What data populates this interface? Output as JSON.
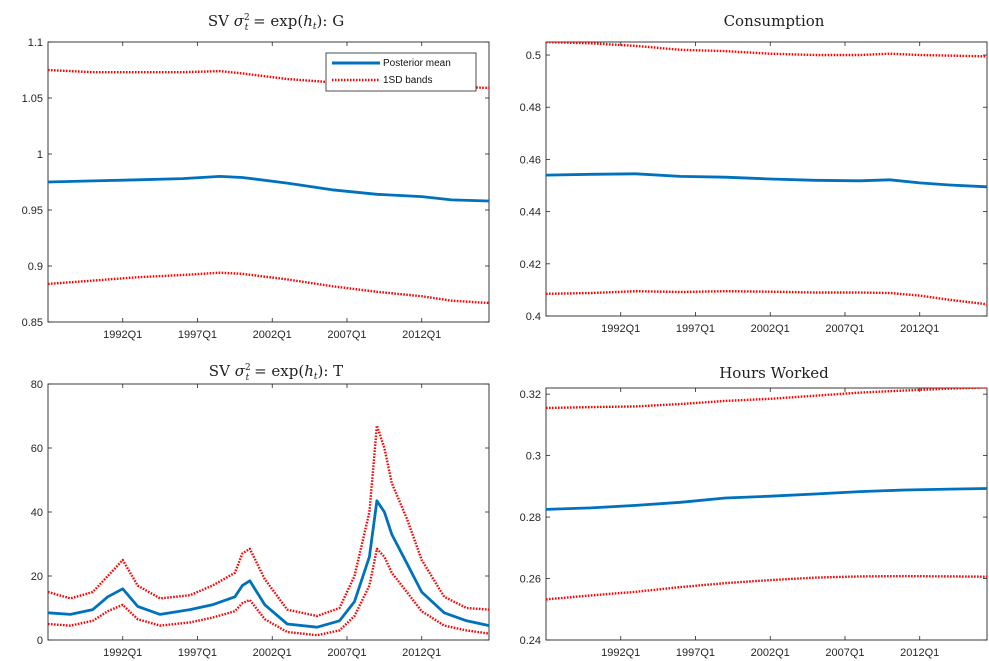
{
  "chart_data": [
    {
      "type": "line",
      "title": "SV σ²_t = exp(h_t): G",
      "xlabel": "",
      "ylabel": "",
      "xlim": [
        1987.0,
        2016.5
      ],
      "ylim": [
        0.85,
        1.1
      ],
      "yticks": [
        "0.85",
        "0.9",
        "0.95",
        "1",
        "1.05",
        "1.1"
      ],
      "xticks": [
        "1992Q1",
        "1997Q1",
        "2002Q1",
        "2007Q1",
        "2012Q1"
      ],
      "legend": {
        "placement": "top-right",
        "entries": [
          "Posterior mean",
          "1SD bands"
        ]
      },
      "x": [
        1987.0,
        1990.0,
        1993.0,
        1996.0,
        1998.5,
        2000.0,
        2003.0,
        2006.0,
        2009.0,
        2012.0,
        2014.0,
        2016.5
      ],
      "series": [
        {
          "name": "Posterior mean",
          "style": "solid",
          "color": "#0072BD",
          "values": [
            0.975,
            0.976,
            0.977,
            0.978,
            0.98,
            0.979,
            0.974,
            0.968,
            0.964,
            0.962,
            0.959,
            0.958
          ]
        },
        {
          "name": "1SD bands",
          "style": "dotted",
          "color": "#FF0000",
          "values": [
            1.075,
            1.073,
            1.073,
            1.073,
            1.074,
            1.072,
            1.067,
            1.064,
            1.063,
            1.062,
            1.06,
            1.059
          ]
        },
        {
          "name": "1SD bands",
          "style": "dotted",
          "color": "#FF0000",
          "values": [
            0.884,
            0.887,
            0.89,
            0.892,
            0.894,
            0.893,
            0.888,
            0.882,
            0.877,
            0.873,
            0.869,
            0.867
          ]
        }
      ]
    },
    {
      "type": "line",
      "title": "Consumption",
      "xlabel": "",
      "ylabel": "",
      "xlim": [
        1987.0,
        2016.5
      ],
      "ylim": [
        0.4,
        0.505
      ],
      "yticks": [
        "0.4",
        "0.42",
        "0.44",
        "0.46",
        "0.48",
        "0.5"
      ],
      "xticks": [
        "1992Q1",
        "1997Q1",
        "2002Q1",
        "2007Q1",
        "2012Q1"
      ],
      "x": [
        1987.0,
        1990.0,
        1993.0,
        1996.0,
        1999.0,
        2002.0,
        2005.0,
        2008.0,
        2010.0,
        2012.0,
        2014.0,
        2016.5
      ],
      "series": [
        {
          "name": "Posterior mean",
          "style": "solid",
          "color": "#0072BD",
          "values": [
            0.454,
            0.4543,
            0.4545,
            0.4535,
            0.4532,
            0.4525,
            0.452,
            0.4518,
            0.4522,
            0.451,
            0.4502,
            0.4495
          ]
        },
        {
          "name": "1SD bands",
          "style": "dotted",
          "color": "#FF0000",
          "values": [
            0.505,
            0.5045,
            0.5035,
            0.502,
            0.5015,
            0.5005,
            0.5,
            0.5,
            0.5005,
            0.5,
            0.4998,
            0.4995
          ]
        },
        {
          "name": "1SD bands",
          "style": "dotted",
          "color": "#FF0000",
          "values": [
            0.4085,
            0.4088,
            0.4095,
            0.4092,
            0.4095,
            0.4093,
            0.409,
            0.409,
            0.4088,
            0.4078,
            0.4062,
            0.4045
          ]
        }
      ]
    },
    {
      "type": "line",
      "title": "SV σ²_t = exp(h_t): T",
      "xlabel": "",
      "ylabel": "",
      "xlim": [
        1987.0,
        2016.5
      ],
      "ylim": [
        0,
        80
      ],
      "yticks": [
        "0",
        "20",
        "40",
        "60",
        "80"
      ],
      "xticks": [
        "1992Q1",
        "1997Q1",
        "2002Q1",
        "2007Q1",
        "2012Q1"
      ],
      "x": [
        1987.0,
        1988.5,
        1990.0,
        1991.0,
        1992.0,
        1993.0,
        1994.5,
        1996.5,
        1998.0,
        1999.5,
        2000.0,
        2000.5,
        2001.5,
        2003.0,
        2005.0,
        2006.5,
        2007.5,
        2008.5,
        2009.0,
        2009.5,
        2010.0,
        2011.0,
        2012.0,
        2013.5,
        2015.0,
        2016.5
      ],
      "series": [
        {
          "name": "Posterior mean",
          "style": "solid",
          "color": "#0072BD",
          "values": [
            8.5,
            8,
            9.5,
            13.5,
            16,
            10.5,
            8,
            9.5,
            11,
            13.5,
            17,
            18.5,
            11,
            5,
            4,
            6,
            12,
            26,
            43.5,
            40,
            33,
            24,
            15,
            8.5,
            6,
            4.5
          ]
        },
        {
          "name": "1SD bands",
          "style": "dotted",
          "color": "#FF0000",
          "values": [
            15,
            13,
            15,
            20,
            25,
            17,
            13,
            14,
            17,
            21,
            27,
            28.5,
            19,
            9.5,
            7.5,
            10,
            20,
            40,
            67,
            60,
            49,
            38,
            25,
            13.5,
            10,
            9.5
          ]
        },
        {
          "name": "1SD bands",
          "style": "dotted",
          "color": "#FF0000",
          "values": [
            5,
            4.5,
            6,
            9,
            11,
            6.5,
            4.5,
            5.5,
            7,
            9,
            11.5,
            12.5,
            6.5,
            2.5,
            1.5,
            3,
            7.5,
            17,
            28.5,
            26,
            21,
            15,
            9,
            4.5,
            3,
            2
          ]
        }
      ]
    },
    {
      "type": "line",
      "title": "Hours Worked",
      "xlabel": "",
      "ylabel": "",
      "xlim": [
        1987.0,
        2016.5
      ],
      "ylim": [
        0.24,
        0.322
      ],
      "yticks": [
        "0.24",
        "0.26",
        "0.28",
        "0.3",
        "0.32"
      ],
      "xticks": [
        "1992Q1",
        "1997Q1",
        "2002Q1",
        "2007Q1",
        "2012Q1"
      ],
      "x": [
        1987.0,
        1990.0,
        1993.0,
        1996.0,
        1999.0,
        2002.0,
        2005.0,
        2008.0,
        2011.0,
        2014.0,
        2016.5
      ],
      "series": [
        {
          "name": "Posterior mean",
          "style": "solid",
          "color": "#0072BD",
          "values": [
            0.2825,
            0.283,
            0.2838,
            0.2848,
            0.2862,
            0.2868,
            0.2875,
            0.2883,
            0.2888,
            0.2891,
            0.2893
          ]
        },
        {
          "name": "1SD bands",
          "style": "dotted",
          "color": "#FF0000",
          "values": [
            0.3155,
            0.3158,
            0.316,
            0.3168,
            0.3178,
            0.3185,
            0.3195,
            0.3205,
            0.3212,
            0.3218,
            0.3222
          ]
        },
        {
          "name": "1SD bands",
          "style": "dotted",
          "color": "#FF0000",
          "values": [
            0.2532,
            0.2545,
            0.2557,
            0.2572,
            0.2585,
            0.2595,
            0.2603,
            0.2607,
            0.2608,
            0.2607,
            0.2606
          ]
        }
      ]
    }
  ]
}
